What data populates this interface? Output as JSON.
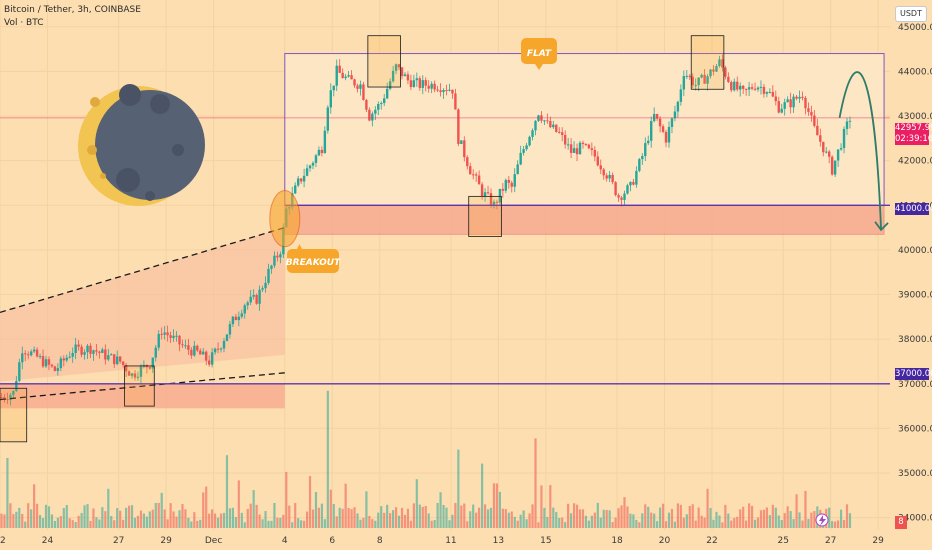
{
  "header": {
    "symbol": "Bitcoin / Tether, 3h, COINBASE",
    "volume_label": "Vol · BTC"
  },
  "currency_button": "USDT",
  "price_scale": {
    "current_price": "42957.99",
    "countdown": "02:39:16",
    "level_upper": "41000.00",
    "level_lower": "37000.00",
    "volume_badge": "8"
  },
  "annotations": {
    "flat_label": "FLAT",
    "breakout_label": "BREAKOUT"
  },
  "colors": {
    "background": "#fddeb0",
    "bull": "#26a69a",
    "bear": "#ef5350",
    "accent_orange": "#f7a62c",
    "range_border": "#7e57c2",
    "support_zone": "#f6a38c",
    "moon_light": "#f2c451",
    "moon_dark": "#576174"
  },
  "chart_data": {
    "type": "candlestick",
    "title": "Bitcoin / Tether, 3h, COINBASE",
    "ylim": [
      33500,
      45600
    ],
    "y_ticks": [
      34000,
      35000,
      36000,
      37000,
      38000,
      39000,
      40000,
      41000,
      42000,
      43000,
      44000,
      45000
    ],
    "y_tick_labels": [
      "34000.00",
      "35000.00",
      "36000.00",
      "37000.00",
      "38000.00",
      "39000.00",
      "40000.00",
      "41000.00",
      "42000.00",
      "43000.00",
      "44000.00",
      "45000.00"
    ],
    "x_tick_labels": [
      {
        "label": "22",
        "index": 0
      },
      {
        "label": "24",
        "index": 16
      },
      {
        "label": "27",
        "index": 40
      },
      {
        "label": "29",
        "index": 56
      },
      {
        "label": "Dec",
        "index": 72
      },
      {
        "label": "4",
        "index": 96
      },
      {
        "label": "6",
        "index": 112
      },
      {
        "label": "8",
        "index": 128
      },
      {
        "label": "11",
        "index": 152
      },
      {
        "label": "13",
        "index": 168
      },
      {
        "label": "15",
        "index": 184
      },
      {
        "label": "18",
        "index": 208
      },
      {
        "label": "20",
        "index": 224
      },
      {
        "label": "22",
        "index": 240
      },
      {
        "label": "25",
        "index": 264
      },
      {
        "label": "27",
        "index": 280
      },
      {
        "label": "29",
        "index": 296
      }
    ],
    "close_path": [
      [
        0,
        36700
      ],
      [
        4,
        36800
      ],
      [
        7,
        37800
      ],
      [
        12,
        37600
      ],
      [
        18,
        37300
      ],
      [
        24,
        37750
      ],
      [
        30,
        37800
      ],
      [
        36,
        37600
      ],
      [
        40,
        37500
      ],
      [
        44,
        37200
      ],
      [
        50,
        37450
      ],
      [
        54,
        38200
      ],
      [
        58,
        38000
      ],
      [
        62,
        37800
      ],
      [
        66,
        37700
      ],
      [
        70,
        37500
      ],
      [
        74,
        37900
      ],
      [
        78,
        38400
      ],
      [
        82,
        38800
      ],
      [
        86,
        38900
      ],
      [
        90,
        39500
      ],
      [
        94,
        40000
      ],
      [
        96,
        40900
      ],
      [
        100,
        41500
      ],
      [
        104,
        41900
      ],
      [
        108,
        42300
      ],
      [
        110,
        43300
      ],
      [
        113,
        44000
      ],
      [
        117,
        43800
      ],
      [
        121,
        43700
      ],
      [
        124,
        43000
      ],
      [
        128,
        43300
      ],
      [
        133,
        44100
      ],
      [
        137,
        43800
      ],
      [
        141,
        43700
      ],
      [
        146,
        43700
      ],
      [
        152,
        43600
      ],
      [
        154,
        42500
      ],
      [
        158,
        41800
      ],
      [
        162,
        41300
      ],
      [
        166,
        41000
      ],
      [
        170,
        41500
      ],
      [
        172,
        41400
      ],
      [
        175,
        42100
      ],
      [
        178,
        42600
      ],
      [
        181,
        43100
      ],
      [
        184,
        42800
      ],
      [
        188,
        42600
      ],
      [
        192,
        42200
      ],
      [
        196,
        42300
      ],
      [
        200,
        42100
      ],
      [
        204,
        41700
      ],
      [
        208,
        41200
      ],
      [
        212,
        41400
      ],
      [
        216,
        42100
      ],
      [
        220,
        43000
      ],
      [
        224,
        42500
      ],
      [
        228,
        43300
      ],
      [
        230,
        44000
      ],
      [
        234,
        43700
      ],
      [
        238,
        43900
      ],
      [
        242,
        44200
      ],
      [
        246,
        43700
      ],
      [
        250,
        43500
      ],
      [
        254,
        43700
      ],
      [
        258,
        43600
      ],
      [
        262,
        43200
      ],
      [
        266,
        43300
      ],
      [
        270,
        43500
      ],
      [
        274,
        42700
      ],
      [
        277,
        42300
      ],
      [
        280,
        41800
      ],
      [
        283,
        42400
      ],
      [
        286,
        42958
      ]
    ],
    "volume_series": {
      "name": "Vol · BTC",
      "spikes": [
        {
          "index": 2,
          "value": 1.25
        },
        {
          "index": 36,
          "value": 0.7
        },
        {
          "index": 76,
          "value": 1.3
        },
        {
          "index": 96,
          "value": 1.0
        },
        {
          "index": 110,
          "value": 2.45
        },
        {
          "index": 154,
          "value": 1.4
        },
        {
          "index": 162,
          "value": 1.15
        },
        {
          "index": 180,
          "value": 1.6
        },
        {
          "index": 210,
          "value": 0.55
        },
        {
          "index": 238,
          "value": 0.7
        }
      ]
    },
    "levels": [
      {
        "name": "support",
        "value": 41000,
        "label": "41000.00",
        "color": "#5e35b1"
      },
      {
        "name": "breakout-level",
        "value": 37000,
        "label": "37000.00",
        "color": "#5e35b1"
      },
      {
        "name": "current",
        "value": 42957.99,
        "label": "42957.99",
        "color": "#e91e63"
      }
    ],
    "range_box": {
      "from_index": 96,
      "to_index": 298,
      "low": 41000,
      "high": 44400
    },
    "support_zone": {
      "from_index": 96,
      "to_index": 298,
      "low": 40350,
      "high": 41000
    },
    "channel": {
      "lower_line": [
        [
          0,
          37050
        ],
        [
          96,
          37650
        ]
      ],
      "upper_line": [
        [
          0,
          38600
        ],
        [
          96,
          40500
        ]
      ]
    },
    "highlight_boxes": [
      {
        "from_index": 0,
        "to_index": 9,
        "low": 35700,
        "high": 36900
      },
      {
        "from_index": 42,
        "to_index": 52,
        "low": 36500,
        "high": 37400
      },
      {
        "from_index": 124,
        "to_index": 135,
        "low": 43650,
        "high": 44800
      },
      {
        "from_index": 158,
        "to_index": 169,
        "low": 40300,
        "high": 41200
      },
      {
        "from_index": 233,
        "to_index": 244,
        "low": 43600,
        "high": 44800
      }
    ],
    "projection_arrow": {
      "from": [
        283,
        42960
      ],
      "peak": [
        288,
        43500
      ],
      "to": [
        298,
        40450
      ]
    }
  }
}
